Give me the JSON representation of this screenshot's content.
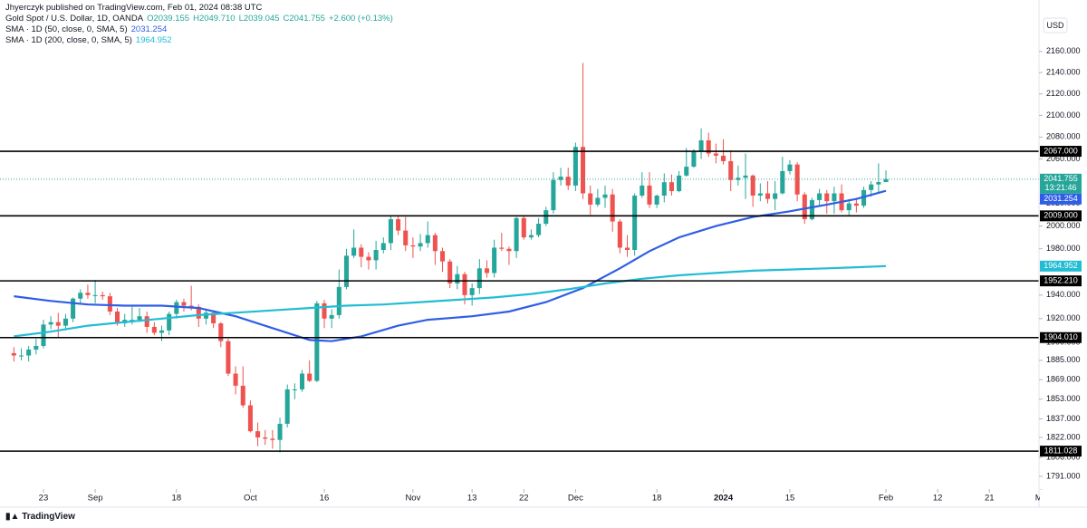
{
  "header": {
    "author": "Jhyerczyk published on TradingView.com, Feb 01, 2024 08:38 UTC",
    "footer": "TradingView"
  },
  "chart_data": {
    "type": "candlestick",
    "symbol": "Gold Spot / U.S. Dollar, 1D, OANDA",
    "ohlc_labels": [
      "O2039.155",
      "H2049.710",
      "L2039.045",
      "C2041.755"
    ],
    "change_label": "+2.600 (+0.13%)",
    "currency": "USD",
    "up_color": "#26a69a",
    "down_color": "#ef5350",
    "log": true,
    "grid": false,
    "ylim": [
      1781,
      2192
    ],
    "yticks": [
      {
        "value": 1791,
        "label": "1791.000"
      },
      {
        "value": 1806,
        "label": "1806.000"
      },
      {
        "value": 1822,
        "label": "1822.000"
      },
      {
        "value": 1837,
        "label": "1837.000"
      },
      {
        "value": 1853,
        "label": "1853.000"
      },
      {
        "value": 1869,
        "label": "1869.000"
      },
      {
        "value": 1885,
        "label": "1885.000"
      },
      {
        "value": 1900,
        "label": "1900.000"
      },
      {
        "value": 1920,
        "label": "1920.000"
      },
      {
        "value": 1940,
        "label": "1940.000"
      },
      {
        "value": 1980,
        "label": "1980.000"
      },
      {
        "value": 2000,
        "label": "2000.000"
      },
      {
        "value": 2020,
        "label": "2020.000"
      },
      {
        "value": 2060,
        "label": "2060.000"
      },
      {
        "value": 2080,
        "label": "2080.000"
      },
      {
        "value": 2100,
        "label": "2100.000"
      },
      {
        "value": 2120,
        "label": "2120.000"
      },
      {
        "value": 2140,
        "label": "2140.000"
      },
      {
        "value": 2160,
        "label": "2160.000"
      }
    ],
    "xlim": [
      -1.88,
      138.71
    ],
    "xticks": [
      {
        "value": 4,
        "label": "23"
      },
      {
        "value": 11,
        "label": "Sep"
      },
      {
        "value": 22,
        "label": "18"
      },
      {
        "value": 32,
        "label": "Oct"
      },
      {
        "value": 42,
        "label": "16"
      },
      {
        "value": 54,
        "label": "Nov"
      },
      {
        "value": 62,
        "label": "13"
      },
      {
        "value": 69,
        "label": "22"
      },
      {
        "value": 76,
        "label": "Dec"
      },
      {
        "value": 87,
        "label": "18"
      },
      {
        "value": 96,
        "label": "2024"
      },
      {
        "value": 105,
        "label": "15"
      },
      {
        "value": 118,
        "label": "Feb"
      },
      {
        "value": 125,
        "label": "12"
      },
      {
        "value": 132,
        "label": "21"
      },
      {
        "value": 139,
        "label": "Ma"
      }
    ],
    "ohlc": [
      [
        1891,
        1896,
        1884,
        1889
      ],
      [
        1889,
        1895,
        1885,
        1889
      ],
      [
        1889,
        1897,
        1884,
        1894
      ],
      [
        1894,
        1903,
        1890,
        1897
      ],
      [
        1897,
        1919,
        1895,
        1915
      ],
      [
        1915,
        1922,
        1911,
        1917
      ],
      [
        1917,
        1925,
        1904,
        1914
      ],
      [
        1914,
        1924,
        1910,
        1920
      ],
      [
        1920,
        1938,
        1917,
        1937
      ],
      [
        1937,
        1945,
        1933,
        1942
      ],
      [
        1942,
        1949,
        1937,
        1940
      ],
      [
        1940,
        1953,
        1933,
        1940
      ],
      [
        1940,
        1943,
        1936,
        1939
      ],
      [
        1939,
        1942,
        1923,
        1926
      ],
      [
        1926,
        1929,
        1914,
        1916
      ],
      [
        1916,
        1924,
        1913,
        1919
      ],
      [
        1919,
        1930,
        1915,
        1919
      ],
      [
        1919,
        1929,
        1917,
        1922
      ],
      [
        1922,
        1926,
        1908,
        1913
      ],
      [
        1913,
        1917,
        1906,
        1908
      ],
      [
        1908,
        1914,
        1901,
        1910
      ],
      [
        1910,
        1926,
        1906,
        1924
      ],
      [
        1924,
        1936,
        1920,
        1934
      ],
      [
        1934,
        1937,
        1926,
        1931
      ],
      [
        1931,
        1948,
        1927,
        1930
      ],
      [
        1930,
        1932,
        1913,
        1920
      ],
      [
        1920,
        1928,
        1915,
        1925
      ],
      [
        1925,
        1926,
        1912,
        1916
      ],
      [
        1916,
        1917,
        1896,
        1901
      ],
      [
        1901,
        1903,
        1872,
        1874
      ],
      [
        1874,
        1880,
        1857,
        1864
      ],
      [
        1864,
        1880,
        1846,
        1848
      ],
      [
        1848,
        1852,
        1826,
        1827
      ],
      [
        1827,
        1834,
        1815,
        1822
      ],
      [
        1822,
        1828,
        1816,
        1821
      ],
      [
        1821,
        1828,
        1813,
        1820
      ],
      [
        1820,
        1838,
        1810,
        1833
      ],
      [
        1833,
        1865,
        1830,
        1861
      ],
      [
        1861,
        1866,
        1853,
        1861
      ],
      [
        1861,
        1877,
        1859,
        1874
      ],
      [
        1874,
        1885,
        1867,
        1868
      ],
      [
        1868,
        1935,
        1867,
        1933
      ],
      [
        1933,
        1936,
        1912,
        1920
      ],
      [
        1920,
        1928,
        1912,
        1923
      ],
      [
        1923,
        1962,
        1920,
        1947
      ],
      [
        1947,
        1980,
        1945,
        1974
      ],
      [
        1974,
        1997,
        1972,
        1981
      ],
      [
        1981,
        1984,
        1964,
        1973
      ],
      [
        1973,
        1977,
        1962,
        1970
      ],
      [
        1970,
        1987,
        1962,
        1979
      ],
      [
        1979,
        1990,
        1976,
        1985
      ],
      [
        1985,
        2009,
        1979,
        2006
      ],
      [
        2006,
        2009,
        1992,
        1996
      ],
      [
        1996,
        2008,
        1978,
        1983
      ],
      [
        1983,
        1990,
        1972,
        1982
      ],
      [
        1982,
        1993,
        1978,
        1985
      ],
      [
        1985,
        2004,
        1981,
        1992
      ],
      [
        1992,
        1994,
        1966,
        1978
      ],
      [
        1978,
        1981,
        1960,
        1969
      ],
      [
        1969,
        1971,
        1946,
        1950
      ],
      [
        1950,
        1965,
        1945,
        1958
      ],
      [
        1958,
        1960,
        1932,
        1940
      ],
      [
        1940,
        1950,
        1931,
        1946
      ],
      [
        1946,
        1971,
        1941,
        1963
      ],
      [
        1963,
        1970,
        1955,
        1959
      ],
      [
        1959,
        1988,
        1955,
        1981
      ],
      [
        1981,
        1994,
        1978,
        1980
      ],
      [
        1980,
        1982,
        1966,
        1978
      ],
      [
        1978,
        2008,
        1972,
        2007
      ],
      [
        2007,
        2009,
        1988,
        1990
      ],
      [
        1990,
        1997,
        1988,
        1992
      ],
      [
        1992,
        2007,
        1990,
        2002
      ],
      [
        2002,
        2017,
        2000,
        2014
      ],
      [
        2014,
        2048,
        2011,
        2041
      ],
      [
        2041,
        2052,
        2036,
        2044
      ],
      [
        2044,
        2052,
        2032,
        2036
      ],
      [
        2036,
        2075,
        2031,
        2071
      ],
      [
        2071,
        2149,
        2024,
        2029
      ],
      [
        2029,
        2036,
        2010,
        2019
      ],
      [
        2019,
        2033,
        2017,
        2025
      ],
      [
        2025,
        2036,
        2016,
        2028
      ],
      [
        2028,
        2033,
        1995,
        2004
      ],
      [
        2004,
        2006,
        1976,
        1981
      ],
      [
        1981,
        1992,
        1973,
        1979
      ],
      [
        1979,
        2029,
        1974,
        2027
      ],
      [
        2027,
        2048,
        2025,
        2036
      ],
      [
        2036,
        2048,
        2016,
        2019
      ],
      [
        2019,
        2028,
        2016,
        2027
      ],
      [
        2027,
        2047,
        2021,
        2039
      ],
      [
        2039,
        2046,
        2027,
        2031
      ],
      [
        2031,
        2049,
        2030,
        2045
      ],
      [
        2045,
        2070,
        2044,
        2053
      ],
      [
        2053,
        2069,
        2052,
        2067
      ],
      [
        2067,
        2088,
        2060,
        2077
      ],
      [
        2077,
        2084,
        2062,
        2065
      ],
      [
        2065,
        2074,
        2056,
        2063
      ],
      [
        2063,
        2078,
        2055,
        2058
      ],
      [
        2058,
        2068,
        2031,
        2041
      ],
      [
        2041,
        2054,
        2036,
        2043
      ],
      [
        2043,
        2065,
        2024,
        2045
      ],
      [
        2045,
        2046,
        2017,
        2027
      ],
      [
        2027,
        2038,
        2022,
        2029
      ],
      [
        2029,
        2040,
        2020,
        2024
      ],
      [
        2024,
        2040,
        2014,
        2029
      ],
      [
        2029,
        2062,
        2028,
        2049
      ],
      [
        2049,
        2059,
        2046,
        2055
      ],
      [
        2055,
        2057,
        2022,
        2028
      ],
      [
        2028,
        2030,
        2002,
        2006
      ],
      [
        2006,
        2025,
        2005,
        2023
      ],
      [
        2023,
        2033,
        2017,
        2029
      ],
      [
        2029,
        2032,
        2011,
        2022
      ],
      [
        2022,
        2035,
        2011,
        2029
      ],
      [
        2029,
        2037,
        2012,
        2014
      ],
      [
        2014,
        2024,
        2009,
        2020
      ],
      [
        2020,
        2025,
        2012,
        2018
      ],
      [
        2018,
        2035,
        2016,
        2032
      ],
      [
        2032,
        2040,
        2026,
        2037
      ],
      [
        2037,
        2056,
        2030,
        2039.155
      ],
      [
        2039.155,
        2049.71,
        2039.045,
        2041.755
      ]
    ],
    "last_price_label": "2041.755",
    "countdown": "13:21:46",
    "series": [
      {
        "name": "SMA · 1D (50, close, 0, SMA, 5)",
        "color": "#2f5ee6",
        "value_label": "2031.254",
        "x": [
          0,
          5,
          10,
          15,
          20,
          25,
          30,
          35,
          40,
          43,
          47,
          52,
          56,
          62,
          67,
          72,
          77,
          82,
          86,
          90,
          95,
          100,
          105,
          110,
          114,
          118
        ],
        "values": [
          1939,
          1935,
          1932,
          1931,
          1931,
          1929,
          1922,
          1912,
          1902,
          1901,
          1905,
          1914,
          1919,
          1922,
          1926,
          1934,
          1946,
          1963,
          1978,
          1990,
          2000,
          2008,
          2013,
          2019,
          2024,
          2031.254
        ]
      },
      {
        "name": "SMA · 1D (200, close, 0, SMA, 5)",
        "color": "#22bcd4",
        "value_label": "1964.952",
        "x": [
          0,
          5,
          10,
          15,
          20,
          25,
          30,
          35,
          40,
          45,
          50,
          55,
          60,
          65,
          70,
          75,
          80,
          85,
          90,
          95,
          100,
          105,
          110,
          114,
          118
        ],
        "values": [
          1905,
          1909,
          1914,
          1917,
          1920,
          1923,
          1925,
          1927,
          1929,
          1931,
          1932,
          1934,
          1936,
          1938,
          1941,
          1945,
          1950,
          1954,
          1957,
          1959,
          1961,
          1962,
          1963,
          1964,
          1964.952
        ]
      }
    ],
    "levels": [
      {
        "value": 2067,
        "label": "2067.000"
      },
      {
        "value": 2009,
        "label": "2009.000"
      },
      {
        "value": 1952.21,
        "label": "1952.210"
      },
      {
        "value": 1904.01,
        "label": "1904.010"
      },
      {
        "value": 1811.028,
        "label": "1811.028"
      }
    ],
    "level_color": "#000000"
  }
}
